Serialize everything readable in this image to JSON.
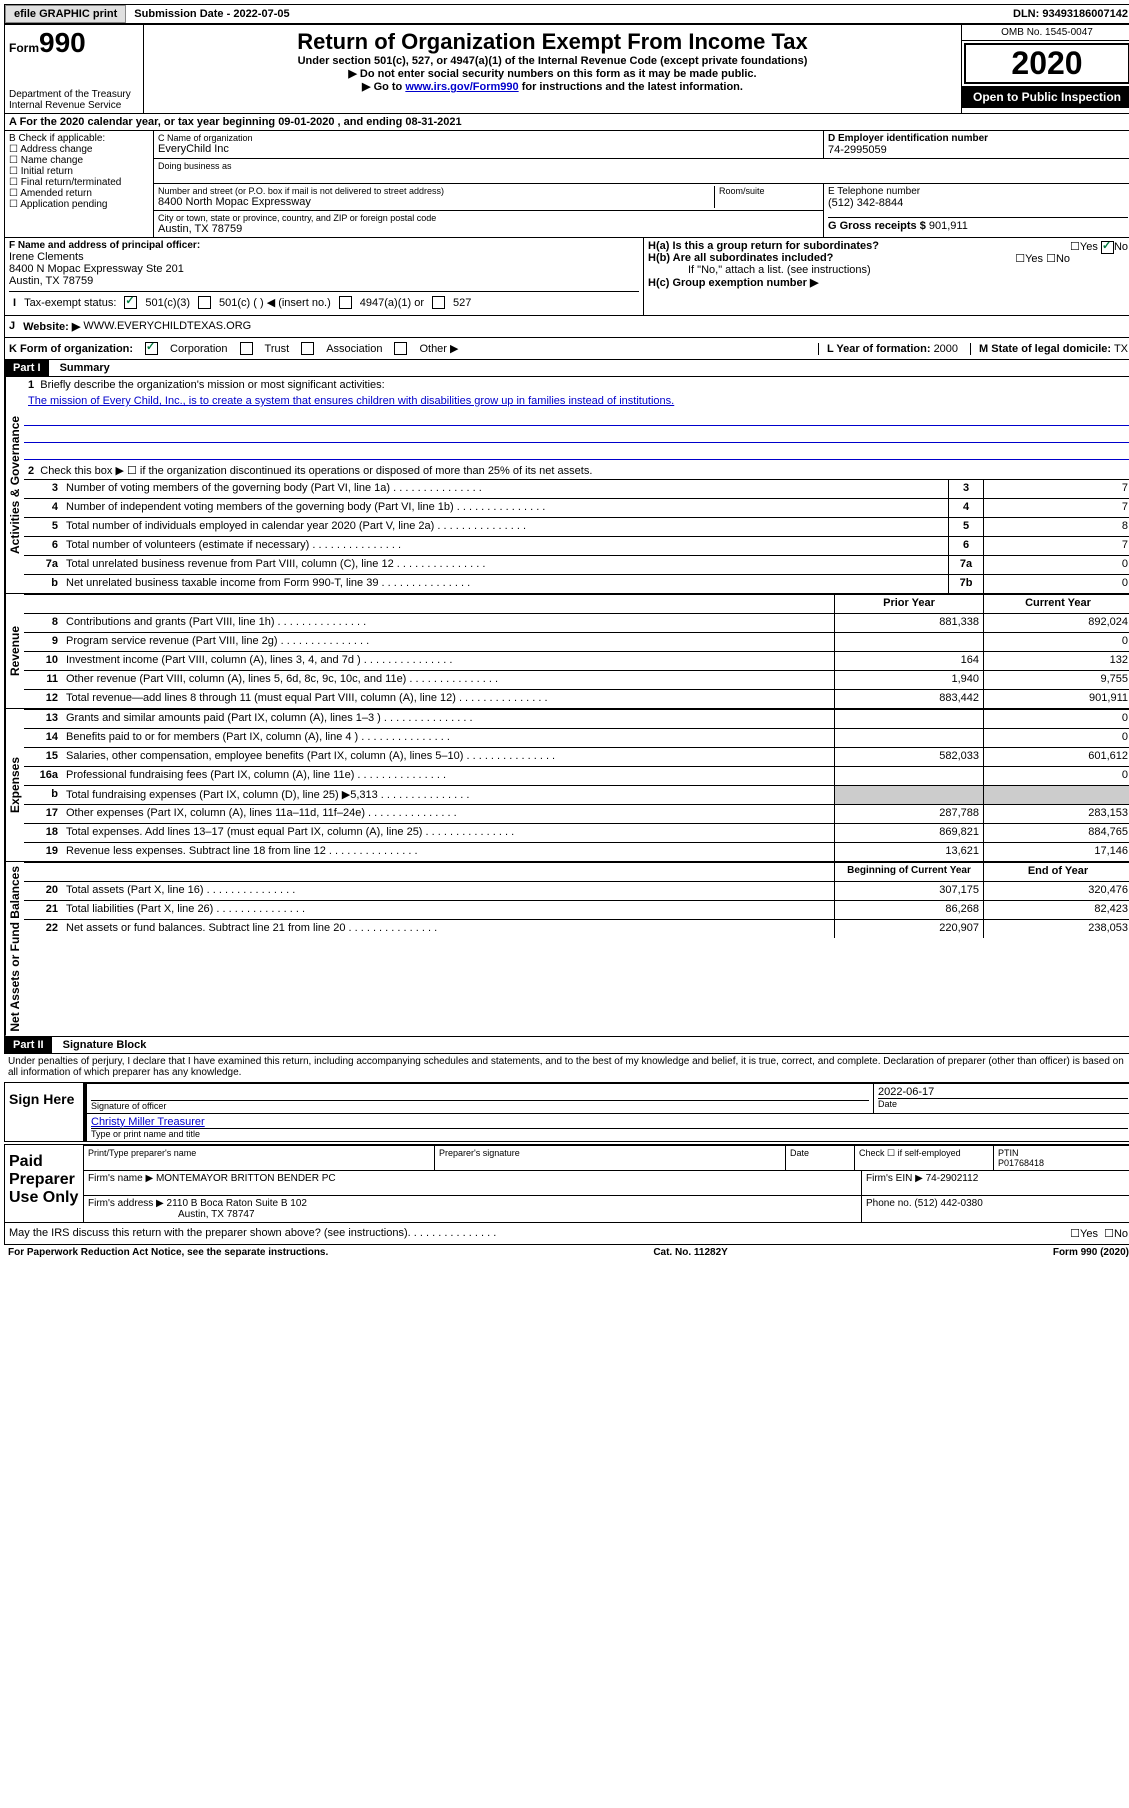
{
  "top": {
    "efile": "efile GRAPHIC print",
    "sub_label": "Submission Date",
    "sub_date": "2022-07-05",
    "dln_label": "DLN:",
    "dln": "93493186007142"
  },
  "header": {
    "form_prefix": "Form",
    "form_num": "990",
    "dept": "Department of the Treasury",
    "irs": "Internal Revenue Service",
    "title": "Return of Organization Exempt From Income Tax",
    "subtitle": "Under section 501(c), 527, or 4947(a)(1) of the Internal Revenue Code (except private foundations)",
    "line1": "▶ Do not enter social security numbers on this form as it may be made public.",
    "line2a": "▶ Go to ",
    "line2_link": "www.irs.gov/Form990",
    "line2b": " for instructions and the latest information.",
    "omb": "OMB No. 1545-0047",
    "year": "2020",
    "open": "Open to Public Inspection"
  },
  "rowA": "A For the 2020 calendar year, or tax year beginning 09-01-2020   , and ending 08-31-2021",
  "B": {
    "label": "B Check if applicable:",
    "opts": [
      "Address change",
      "Name change",
      "Initial return",
      "Final return/terminated",
      "Amended return",
      "Application pending"
    ]
  },
  "C": {
    "name_label": "C Name of organization",
    "name": "EveryChild Inc",
    "dba_label": "Doing business as",
    "street_label": "Number and street (or P.O. box if mail is not delivered to street address)",
    "room_label": "Room/suite",
    "street": "8400 North Mopac Expressway",
    "city_label": "City or town, state or province, country, and ZIP or foreign postal code",
    "city": "Austin, TX  78759"
  },
  "D": {
    "label": "D Employer identification number",
    "val": "74-2995059"
  },
  "E": {
    "label": "E Telephone number",
    "val": "(512) 342-8844"
  },
  "G": {
    "label": "G Gross receipts $",
    "val": "901,911"
  },
  "F": {
    "label": "F  Name and address of principal officer:",
    "name": "Irene Clements",
    "addr1": "8400 N Mopac Expressway Ste 201",
    "addr2": "Austin, TX  78759"
  },
  "H": {
    "a": "H(a)  Is this a group return for subordinates?",
    "b": "H(b)  Are all subordinates included?",
    "b_note": "If \"No,\" attach a list. (see instructions)",
    "c": "H(c)  Group exemption number ▶",
    "yes": "Yes",
    "no": "No"
  },
  "I": {
    "label": "Tax-exempt status:",
    "opts": [
      "501(c)(3)",
      "501(c) (   ) ◀ (insert no.)",
      "4947(a)(1) or",
      "527"
    ]
  },
  "J": {
    "label": "Website: ▶",
    "val": "WWW.EVERYCHILDTEXAS.ORG"
  },
  "K": {
    "label": "K Form of organization:",
    "opts": [
      "Corporation",
      "Trust",
      "Association",
      "Other ▶"
    ],
    "L_label": "L Year of formation:",
    "L_val": "2000",
    "M_label": "M State of legal domicile:",
    "M_val": "TX"
  },
  "partI": {
    "title": "Part I",
    "subtitle": "Summary",
    "vert_labels": [
      "Activities & Governance",
      "Revenue",
      "Expenses",
      "Net Assets or Fund Balances"
    ],
    "q1": "Briefly describe the organization's mission or most significant activities:",
    "mission": "The mission of Every Child, Inc., is to create a system that ensures children with disabilities grow up in families instead of institutions.",
    "q2": "Check this box ▶ ☐  if the organization discontinued its operations or disposed of more than 25% of its net assets.",
    "lines_gov": [
      {
        "n": "3",
        "d": "Number of voting members of the governing body (Part VI, line 1a)",
        "box": "3",
        "v": "7"
      },
      {
        "n": "4",
        "d": "Number of independent voting members of the governing body (Part VI, line 1b)",
        "box": "4",
        "v": "7"
      },
      {
        "n": "5",
        "d": "Total number of individuals employed in calendar year 2020 (Part V, line 2a)",
        "box": "5",
        "v": "8"
      },
      {
        "n": "6",
        "d": "Total number of volunteers (estimate if necessary)",
        "box": "6",
        "v": "7"
      },
      {
        "n": "7a",
        "d": "Total unrelated business revenue from Part VIII, column (C), line 12",
        "box": "7a",
        "v": "0"
      },
      {
        "n": "b",
        "d": "Net unrelated business taxable income from Form 990-T, line 39",
        "box": "7b",
        "v": "0"
      }
    ],
    "prior_hdr": "Prior Year",
    "current_hdr": "Current Year",
    "rev": [
      {
        "n": "8",
        "d": "Contributions and grants (Part VIII, line 1h)",
        "p": "881,338",
        "c": "892,024"
      },
      {
        "n": "9",
        "d": "Program service revenue (Part VIII, line 2g)",
        "p": "",
        "c": "0"
      },
      {
        "n": "10",
        "d": "Investment income (Part VIII, column (A), lines 3, 4, and 7d )",
        "p": "164",
        "c": "132"
      },
      {
        "n": "11",
        "d": "Other revenue (Part VIII, column (A), lines 5, 6d, 8c, 9c, 10c, and 11e)",
        "p": "1,940",
        "c": "9,755"
      },
      {
        "n": "12",
        "d": "Total revenue—add lines 8 through 11 (must equal Part VIII, column (A), line 12)",
        "p": "883,442",
        "c": "901,911"
      }
    ],
    "exp": [
      {
        "n": "13",
        "d": "Grants and similar amounts paid (Part IX, column (A), lines 1–3 )",
        "p": "",
        "c": "0"
      },
      {
        "n": "14",
        "d": "Benefits paid to or for members (Part IX, column (A), line 4 )",
        "p": "",
        "c": "0"
      },
      {
        "n": "15",
        "d": "Salaries, other compensation, employee benefits (Part IX, column (A), lines 5–10)",
        "p": "582,033",
        "c": "601,612"
      },
      {
        "n": "16a",
        "d": "Professional fundraising fees (Part IX, column (A), line 11e)",
        "p": "",
        "c": "0"
      },
      {
        "n": "b",
        "d": "Total fundraising expenses (Part IX, column (D), line 25) ▶5,313",
        "p": "SHADE",
        "c": "SHADE"
      },
      {
        "n": "17",
        "d": "Other expenses (Part IX, column (A), lines 11a–11d, 11f–24e)",
        "p": "287,788",
        "c": "283,153"
      },
      {
        "n": "18",
        "d": "Total expenses. Add lines 13–17 (must equal Part IX, column (A), line 25)",
        "p": "869,821",
        "c": "884,765"
      },
      {
        "n": "19",
        "d": "Revenue less expenses. Subtract line 18 from line 12",
        "p": "13,621",
        "c": "17,146"
      }
    ],
    "net_hdr_p": "Beginning of Current Year",
    "net_hdr_c": "End of Year",
    "net": [
      {
        "n": "20",
        "d": "Total assets (Part X, line 16)",
        "p": "307,175",
        "c": "320,476"
      },
      {
        "n": "21",
        "d": "Total liabilities (Part X, line 26)",
        "p": "86,268",
        "c": "82,423"
      },
      {
        "n": "22",
        "d": "Net assets or fund balances. Subtract line 21 from line 20",
        "p": "220,907",
        "c": "238,053"
      }
    ]
  },
  "partII": {
    "title": "Part II",
    "subtitle": "Signature Block",
    "decl": "Under penalties of perjury, I declare that I have examined this return, including accompanying schedules and statements, and to the best of my knowledge and belief, it is true, correct, and complete. Declaration of preparer (other than officer) is based on all information of which preparer has any knowledge.",
    "sign_here": "Sign Here",
    "sig_officer": "Signature of officer",
    "date_label": "Date",
    "sig_date": "2022-06-17",
    "officer_name": "Christy Miller Treasurer",
    "type_name": "Type or print name and title",
    "paid": "Paid Preparer Use Only",
    "prep_name_label": "Print/Type preparer's name",
    "prep_sig_label": "Preparer's signature",
    "check_self": "Check ☐ if self-employed",
    "ptin_label": "PTIN",
    "ptin": "P01768418",
    "firm_name_label": "Firm's name    ▶",
    "firm_name": "MONTEMAYOR BRITTON BENDER PC",
    "firm_ein_label": "Firm's EIN ▶",
    "firm_ein": "74-2902112",
    "firm_addr_label": "Firm's address ▶",
    "firm_addr1": "2110 B Boca Raton Suite B 102",
    "firm_addr2": "Austin, TX  78747",
    "phone_label": "Phone no.",
    "phone": "(512) 442-0380",
    "discuss": "May the IRS discuss this return with the preparer shown above? (see instructions)"
  },
  "footer": {
    "left": "For Paperwork Reduction Act Notice, see the separate instructions.",
    "center": "Cat. No. 11282Y",
    "right": "Form 990 (2020)"
  }
}
